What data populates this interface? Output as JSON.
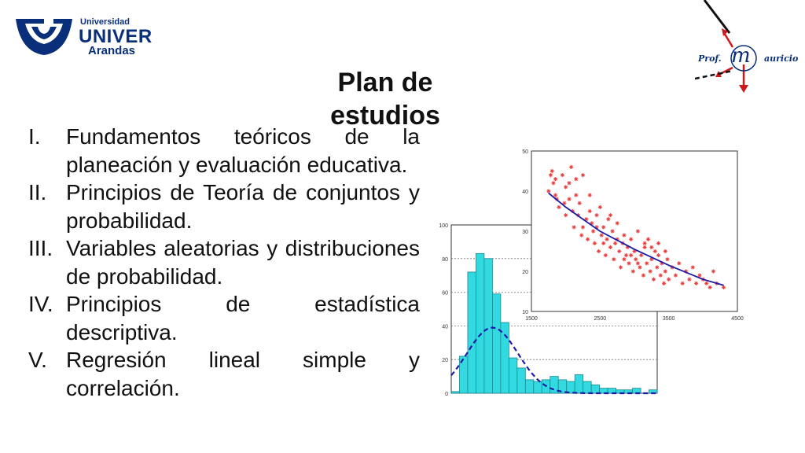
{
  "logo": {
    "line1": "Universidad",
    "line2": "UNIVER",
    "line3": "Arandas"
  },
  "signature": {
    "prefix": "Prof.",
    "initial": "m",
    "rest": "auricio"
  },
  "title": "Plan de estudios",
  "items": [
    {
      "num": "I.",
      "text": "Fundamentos teóricos de la planeación y evaluación educativa."
    },
    {
      "num": "II.",
      "text": "Principios de Teoría de conjuntos y probabilidad."
    },
    {
      "num": "III.",
      "text": "Variables aleatorias y distribuciones de probabilidad."
    },
    {
      "num": "IV.",
      "text": "Principios de estadística descriptiva."
    },
    {
      "num": "V.",
      "text": "Regresión lineal simple y correlación."
    }
  ],
  "colors": {
    "logo_blue": "#0a2f7a",
    "hist_fill": "#33d9e0",
    "scatter_point": "#e83838",
    "curve": "#1a1aa6",
    "arrow_red": "#d01818"
  },
  "chart_data": [
    {
      "type": "bar",
      "bins": 25,
      "values": [
        1,
        22,
        72,
        83,
        80,
        59,
        42,
        21,
        15,
        8,
        7,
        8,
        10,
        8,
        7,
        11,
        7,
        5,
        3,
        3,
        2,
        2,
        3,
        0,
        2
      ],
      "ylim": [
        0,
        100
      ],
      "yticks": [
        "0",
        "20",
        "40",
        "60",
        "80",
        "100"
      ],
      "grid": "dotted horizontal",
      "overlay_curve": {
        "style": "dashed",
        "peak": 39
      }
    },
    {
      "type": "scatter",
      "xlim": [
        1500,
        4500
      ],
      "ylim": [
        10,
        50
      ],
      "xticks": [
        "1500",
        "2500",
        "3500",
        "4500"
      ],
      "yticks": [
        "10",
        "20",
        "30",
        "40",
        "50"
      ],
      "marker": "asterisk",
      "trend": {
        "type": "quadratic",
        "points": [
          [
            1750,
            39.5
          ],
          [
            2000,
            36
          ],
          [
            2500,
            30
          ],
          [
            3000,
            25.5
          ],
          [
            3500,
            21.5
          ],
          [
            4000,
            18
          ],
          [
            4300,
            16.5
          ]
        ]
      },
      "points": [
        [
          1750,
          40
        ],
        [
          1780,
          44
        ],
        [
          1800,
          45
        ],
        [
          1820,
          42
        ],
        [
          1850,
          39
        ],
        [
          1870,
          38
        ],
        [
          1900,
          36
        ],
        [
          1950,
          44
        ],
        [
          1980,
          37
        ],
        [
          2000,
          41
        ],
        [
          2000,
          34
        ],
        [
          2050,
          38
        ],
        [
          2080,
          46
        ],
        [
          2100,
          35
        ],
        [
          2120,
          31
        ],
        [
          2150,
          39
        ],
        [
          2180,
          34
        ],
        [
          2200,
          37
        ],
        [
          2230,
          29
        ],
        [
          2250,
          44
        ],
        [
          2300,
          33
        ],
        [
          2320,
          28
        ],
        [
          2350,
          39
        ],
        [
          2380,
          32
        ],
        [
          2400,
          30
        ],
        [
          2420,
          27
        ],
        [
          2450,
          34
        ],
        [
          2480,
          25
        ],
        [
          2500,
          36
        ],
        [
          2520,
          29
        ],
        [
          2550,
          31
        ],
        [
          2580,
          24
        ],
        [
          2600,
          28
        ],
        [
          2620,
          33
        ],
        [
          2650,
          26
        ],
        [
          2680,
          30
        ],
        [
          2700,
          23
        ],
        [
          2720,
          27
        ],
        [
          2750,
          32
        ],
        [
          2780,
          25
        ],
        [
          2800,
          21
        ],
        [
          2830,
          27
        ],
        [
          2850,
          29
        ],
        [
          2880,
          24
        ],
        [
          2900,
          26
        ],
        [
          2920,
          22
        ],
        [
          2950,
          28
        ],
        [
          2980,
          20
        ],
        [
          3000,
          25
        ],
        [
          3020,
          23
        ],
        [
          3050,
          30
        ],
        [
          3080,
          21
        ],
        [
          3100,
          24
        ],
        [
          3130,
          19
        ],
        [
          3150,
          26
        ],
        [
          3180,
          22
        ],
        [
          3200,
          28
        ],
        [
          3230,
          20
        ],
        [
          3250,
          23
        ],
        [
          3280,
          18
        ],
        [
          3300,
          25
        ],
        [
          3330,
          21
        ],
        [
          3350,
          24
        ],
        [
          3380,
          19
        ],
        [
          3400,
          22
        ],
        [
          3430,
          17
        ],
        [
          3450,
          20
        ],
        [
          3480,
          23
        ],
        [
          3500,
          18
        ],
        [
          3550,
          21
        ],
        [
          3600,
          19
        ],
        [
          3650,
          22
        ],
        [
          3700,
          17
        ],
        [
          3750,
          20
        ],
        [
          3800,
          18
        ],
        [
          3850,
          21
        ],
        [
          3900,
          17
        ],
        [
          3950,
          19
        ],
        [
          4000,
          18
        ],
        [
          4050,
          17
        ],
        [
          4100,
          16
        ],
        [
          4150,
          20
        ],
        [
          4200,
          17
        ],
        [
          4300,
          16
        ],
        [
          1850,
          43
        ],
        [
          2050,
          42
        ],
        [
          2150,
          43
        ],
        [
          2250,
          31
        ],
        [
          2350,
          35
        ],
        [
          2450,
          31
        ],
        [
          2550,
          27
        ],
        [
          2650,
          34
        ],
        [
          2750,
          28
        ],
        [
          2850,
          23
        ],
        [
          2950,
          24
        ],
        [
          3050,
          22
        ],
        [
          3150,
          27
        ],
        [
          3250,
          26
        ],
        [
          3350,
          27
        ],
        [
          3450,
          25
        ]
      ]
    }
  ]
}
